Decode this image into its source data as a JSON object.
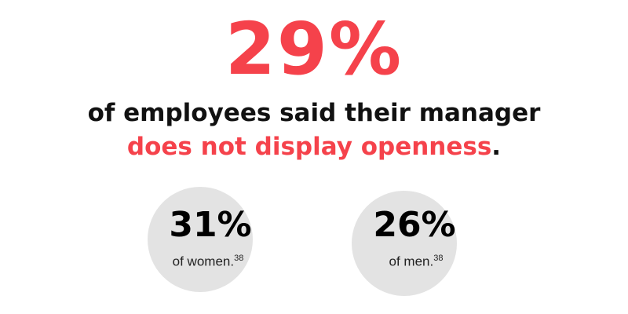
{
  "headline": {
    "stat": "29%",
    "line1": "of employees said their manager",
    "line2_highlight": "does not display openness",
    "line2_end": "."
  },
  "breakdown": [
    {
      "stat": "31%",
      "label": "of women.",
      "footnote": "38"
    },
    {
      "stat": "26%",
      "label": "of men.",
      "footnote": "38"
    }
  ]
}
